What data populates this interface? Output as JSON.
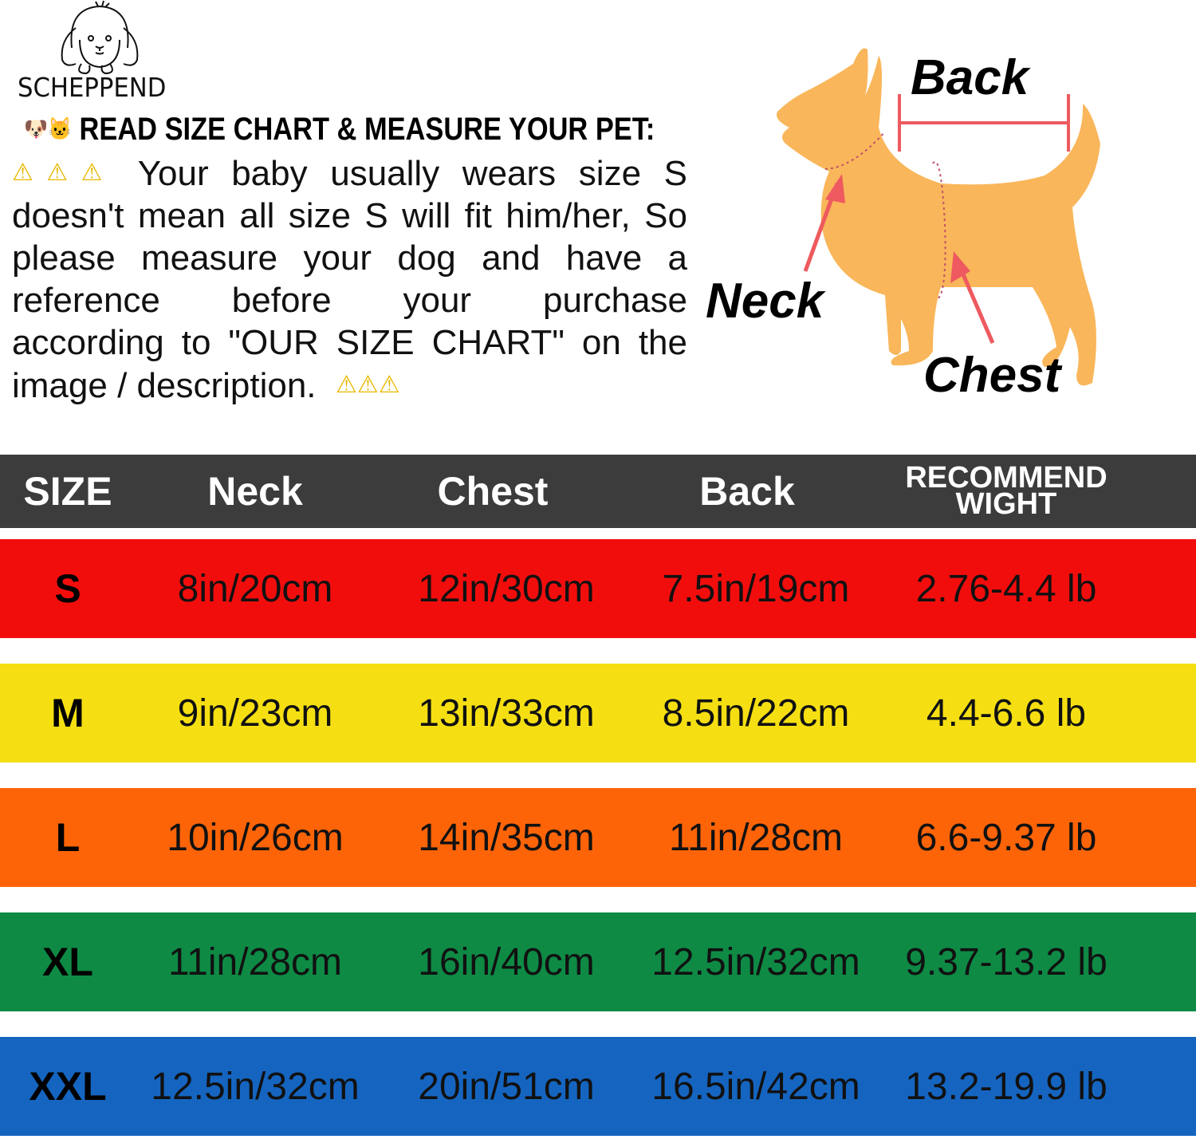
{
  "brand": {
    "name": "SCHEPPEND",
    "logo_icon": "dog-face-line-icon"
  },
  "headline": {
    "text": "READ SIZE CHART & MEASURE YOUR PET:",
    "icons": [
      "dog-face-emoji",
      "cat-face-emoji"
    ]
  },
  "notice_lines": [
    "Your baby usually wears size S",
    "doesn't mean all size S will fit him/her, So",
    "please measure your dog and have a",
    "reference before your purchase",
    "according to \"OUR SIZE CHART\" on the",
    "image / description."
  ],
  "warning_icon": "⚠⚠⚠",
  "diagram": {
    "back": "Back",
    "neck": "Neck",
    "chest": "Chest",
    "dog_color": "#f9b65a",
    "marker_color": "#ee5a5f"
  },
  "table": {
    "headers": [
      "SIZE",
      "Neck",
      "Chest",
      "Back",
      "RECOMMEND",
      "WIGHT"
    ],
    "header_color": "#3c3c3c",
    "rows": [
      {
        "size": "S",
        "neck": "8in/20cm",
        "chest": "12in/30cm",
        "back": "7.5in/19cm",
        "weight": "2.76-4.4 lb",
        "color": "#f20d0d"
      },
      {
        "size": "M",
        "neck": "9in/23cm",
        "chest": "13in/33cm",
        "back": "8.5in/22cm",
        "weight": "4.4-6.6 lb",
        "color": "#f5df12"
      },
      {
        "size": "L",
        "neck": "10in/26cm",
        "chest": "14in/35cm",
        "back": "11in/28cm",
        "weight": "6.6-9.37 lb",
        "color": "#fd6408"
      },
      {
        "size": "XL",
        "neck": "11in/28cm",
        "chest": "16in/40cm",
        "back": "12.5in/32cm",
        "weight": "9.37-13.2 lb",
        "color": "#0e8a45"
      },
      {
        "size": "XXL",
        "neck": "12.5in/32cm",
        "chest": "20in/51cm",
        "back": "16.5in/42cm",
        "weight": "13.2-19.9 lb",
        "color": "#1565c0"
      }
    ]
  }
}
